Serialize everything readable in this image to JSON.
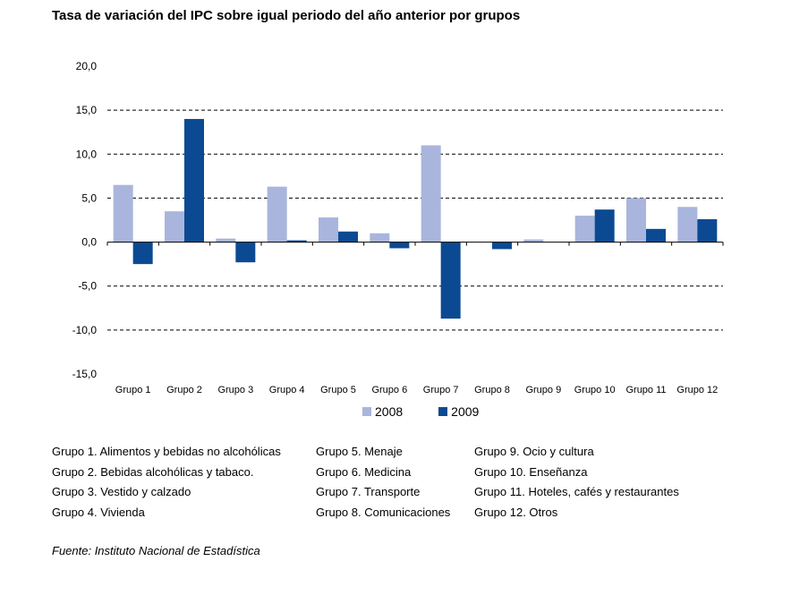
{
  "title": "Tasa de variación del IPC sobre igual periodo del año anterior por grupos",
  "source": "Fuente: Instituto Nacional de Estadística",
  "colors": {
    "2008": "#a9b5dc",
    "2009": "#0b4a92"
  },
  "chart_data": {
    "type": "bar",
    "categories": [
      "Grupo 1",
      "Grupo 2",
      "Grupo 3",
      "Grupo 4",
      "Grupo 5",
      "Grupo 6",
      "Grupo 7",
      "Grupo 8",
      "Grupo 9",
      "Grupo 10",
      "Grupo 11",
      "Grupo 12"
    ],
    "series": [
      {
        "name": "2008",
        "values": [
          6.5,
          3.5,
          0.4,
          6.3,
          2.8,
          1.0,
          11.0,
          0.0,
          0.3,
          3.0,
          5.0,
          4.0
        ]
      },
      {
        "name": "2009",
        "values": [
          -2.5,
          14.0,
          -2.3,
          0.2,
          1.2,
          -0.7,
          -8.7,
          -0.8,
          0.0,
          3.7,
          1.5,
          2.6
        ]
      }
    ],
    "yticks": [
      "20,0",
      "15,0",
      "10,0",
      "5,0",
      "0,0",
      "-5,0",
      "-10,0",
      "-15,0"
    ],
    "ylim": [
      -15,
      20
    ],
    "grid": "dashed horizontal",
    "legend": "bottom",
    "xlabel": "",
    "ylabel": ""
  },
  "group_notes": [
    [
      "Grupo 1. Alimentos y bebidas no alcohólicas",
      "Grupo 2. Bebidas alcohólicas y  tabaco.",
      "Grupo 3. Vestido y calzado",
      "Grupo 4. Vivienda"
    ],
    [
      "Grupo 5. Menaje",
      "Grupo 6. Medicina",
      "Grupo 7. Transporte",
      "Grupo 8. Comunicaciones"
    ],
    [
      "Grupo 9. Ocio y cultura",
      "Grupo 10. Enseñanza",
      "Grupo 11. Hoteles, cafés y restaurantes",
      "Grupo 12. Otros"
    ]
  ]
}
